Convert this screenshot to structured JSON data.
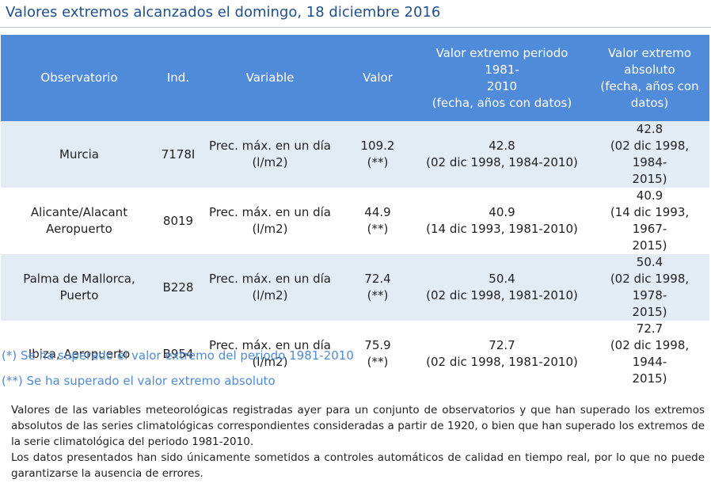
{
  "title": "Valores extremos alcanzados el domingo, 18 diciembre 2016",
  "table": {
    "headers": {
      "observatorio": "Observatorio",
      "ind": "Ind.",
      "variable": "Variable",
      "valor": "Valor",
      "periodo_l1": "Valor extremo periodo 1981-",
      "periodo_l2": "2010",
      "periodo_l3": "(fecha, años con datos)",
      "absoluto_l1": "Valor extremo",
      "absoluto_l2": "absoluto",
      "absoluto_l3": "(fecha, años con",
      "absoluto_l4": "datos)"
    },
    "rows": [
      {
        "obs_l1": "Murcia",
        "obs_l2": "",
        "ind": "7178I",
        "var_l1": "Prec. máx. en un día",
        "var_l2": "(l/m2)",
        "valor": "109.2",
        "marca": "(**)",
        "periodo_valor": "42.8",
        "periodo_fecha": "(02 dic 1998, 1984-2010)",
        "abs_valor": "42.8",
        "abs_l1": "(02 dic 1998, 1984-",
        "abs_l2": "2015)"
      },
      {
        "obs_l1": "Alicante/Alacant",
        "obs_l2": "Aeropuerto",
        "ind": "8019",
        "var_l1": "Prec. máx. en un día",
        "var_l2": "(l/m2)",
        "valor": "44.9",
        "marca": "(**)",
        "periodo_valor": "40.9",
        "periodo_fecha": "(14 dic 1993, 1981-2010)",
        "abs_valor": "40.9",
        "abs_l1": "(14 dic 1993, 1967-",
        "abs_l2": "2015)"
      },
      {
        "obs_l1": "Palma de Mallorca,",
        "obs_l2": "Puerto",
        "ind": "B228",
        "var_l1": "Prec. máx. en un día",
        "var_l2": "(l/m2)",
        "valor": "72.4",
        "marca": "(**)",
        "periodo_valor": "50.4",
        "periodo_fecha": "(02 dic 1998, 1981-2010)",
        "abs_valor": "50.4",
        "abs_l1": "(02 dic 1998, 1978-",
        "abs_l2": "2015)"
      },
      {
        "obs_l1": "Ibiza, Aeropuerto",
        "obs_l2": "",
        "ind": "B954",
        "var_l1": "Prec. máx. en un día",
        "var_l2": "(l/m2)",
        "valor": "75.9",
        "marca": "(**)",
        "periodo_valor": "72.7",
        "periodo_fecha": "(02 dic 1998, 1981-2010)",
        "abs_valor": "72.7",
        "abs_l1": "(02 dic 1998, 1944-",
        "abs_l2": "2015)"
      }
    ]
  },
  "notes": {
    "single": "(*) Se ha superado el valor extremo del periodo 1981-2010",
    "double": "(**) Se ha superado el valor extremo absoluto"
  },
  "description": {
    "p1": "Valores de las variables meteorológicas registradas ayer para un conjunto de observatorios y que han superado los extremos absolutos de las series climatológicas correspondientes consideradas a partir de 1920, o bien que han superado los extremos de la serie climatológica del periodo 1981-2010.",
    "p2": "Los datos presentados han sido únicamente sometidos a controles automáticos de calidad en tiempo real, por lo que no puede garantizarse la ausencia de errores."
  },
  "colors": {
    "header_bg": "#4f8bd8",
    "title_text": "#1f4e8c",
    "shaded_row": "#e3ecf4",
    "note_text": "#4f8bd8"
  }
}
